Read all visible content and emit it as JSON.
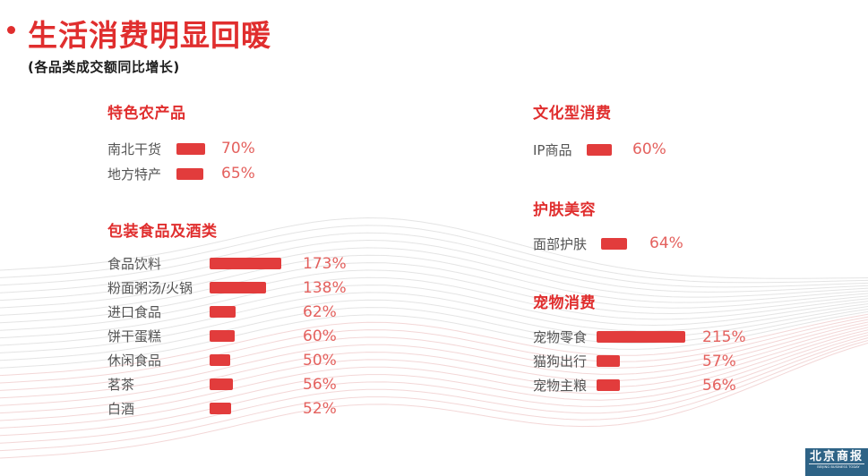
{
  "header": {
    "title": "生活消费明显回暖",
    "subtitle": "(各品类成交额同比增长)"
  },
  "colors": {
    "accent_red": "#e02e2e",
    "bar_red": "#e23c3c",
    "value_red": "#e4615e",
    "label_gray": "#545454",
    "logo_blue": "#2e6386"
  },
  "sections": [
    {
      "heading": "特色农产品",
      "rows": [
        {
          "label": "南北干货",
          "value": 70,
          "value_label": "70%"
        },
        {
          "label": "地方特产",
          "value": 65,
          "value_label": "65%"
        }
      ]
    },
    {
      "heading": "包装食品及酒类",
      "rows": [
        {
          "label": "食品饮料",
          "value": 173,
          "value_label": "173%"
        },
        {
          "label": "粉面粥汤/火锅",
          "value": 138,
          "value_label": "138%"
        },
        {
          "label": "进口食品",
          "value": 62,
          "value_label": "62%"
        },
        {
          "label": "饼干蛋糕",
          "value": 60,
          "value_label": "60%"
        },
        {
          "label": "休闲食品",
          "value": 50,
          "value_label": "50%"
        },
        {
          "label": "茗茶",
          "value": 56,
          "value_label": "56%"
        },
        {
          "label": "白酒",
          "value": 52,
          "value_label": "52%"
        }
      ]
    },
    {
      "heading": "文化型消费",
      "rows": [
        {
          "label": "IP商品",
          "value": 60,
          "value_label": "60%"
        }
      ]
    },
    {
      "heading": "护肤美容",
      "rows": [
        {
          "label": "面部护肤",
          "value": 64,
          "value_label": "64%"
        }
      ]
    },
    {
      "heading": "宠物消费",
      "rows": [
        {
          "label": "宠物零食",
          "value": 215,
          "value_label": "215%"
        },
        {
          "label": "猫狗出行",
          "value": 57,
          "value_label": "57%"
        },
        {
          "label": "宠物主粮",
          "value": 56,
          "value_label": "56%"
        }
      ]
    }
  ],
  "logo": {
    "name_cn": "北京商报",
    "name_en": "BEIJING BUSINESS TODAY"
  },
  "chart_data": {
    "type": "bar",
    "title": "生活消费明显回暖",
    "subtitle": "(各品类成交额同比增长)",
    "unit": "%",
    "orientation": "horizontal",
    "grid": false,
    "legend": false,
    "groups": [
      {
        "title": "特色农产品",
        "categories": [
          "南北干货",
          "地方特产"
        ],
        "values": [
          70,
          65
        ]
      },
      {
        "title": "包装食品及酒类",
        "categories": [
          "食品饮料",
          "粉面粥汤/火锅",
          "进口食品",
          "饼干蛋糕",
          "休闲食品",
          "茗茶",
          "白酒"
        ],
        "values": [
          173,
          138,
          62,
          60,
          50,
          56,
          52
        ]
      },
      {
        "title": "文化型消费",
        "categories": [
          "IP商品"
        ],
        "values": [
          60
        ]
      },
      {
        "title": "护肤美容",
        "categories": [
          "面部护肤"
        ],
        "values": [
          64
        ]
      },
      {
        "title": "宠物消费",
        "categories": [
          "宠物零食",
          "猫狗出行",
          "宠物主粮"
        ],
        "values": [
          215,
          57,
          56
        ]
      }
    ]
  }
}
